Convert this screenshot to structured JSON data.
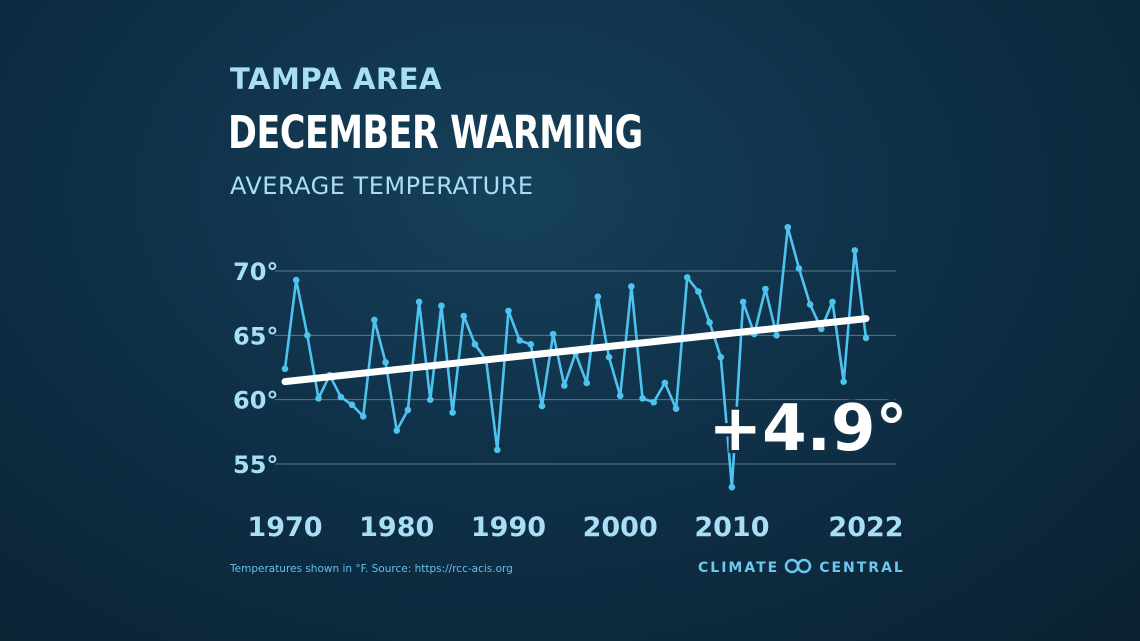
{
  "region": "TAMPA AREA",
  "title": "DECEMBER WARMING",
  "subtitle": "AVERAGE TEMPERATURE",
  "change_label": "+4.9°",
  "source_note": "Temperatures shown in °F. Source: https://rcc-acis.org",
  "brand": {
    "left": "CLIMATE",
    "right": "CENTRAL",
    "logo_icon": "linked-circles-icon"
  },
  "colors": {
    "series": "#4fc3ef",
    "trend": "#ffffff",
    "label": "#a8def6",
    "grid": "#6f8fa3"
  },
  "chart_data": {
    "type": "line",
    "title": "DECEMBER WARMING",
    "subtitle": "AVERAGE TEMPERATURE",
    "xlim": [
      1970,
      2022
    ],
    "ylim": [
      52,
      74
    ],
    "yticks": [
      55,
      60,
      65,
      70
    ],
    "ytick_labels": [
      "55°",
      "60°",
      "65°",
      "70°"
    ],
    "xticks": [
      1970,
      1980,
      1990,
      2000,
      2010,
      2022
    ],
    "xtick_labels": [
      "1970",
      "1980",
      "1990",
      "2000",
      "2010",
      "2022"
    ],
    "grid": "horizontal",
    "series": [
      {
        "x": [
          1970,
          1971,
          1972,
          1973,
          1974,
          1975,
          1976,
          1977,
          1978,
          1979,
          1980,
          1981,
          1982,
          1983,
          1984,
          1985,
          1986,
          1987,
          1988,
          1989,
          1990,
          1991,
          1992,
          1993,
          1994,
          1995,
          1996,
          1997,
          1998,
          1999,
          2000,
          2001,
          2002,
          2003,
          2004,
          2005,
          2006,
          2007,
          2008,
          2009,
          2010,
          2011,
          2012,
          2013,
          2014,
          2015,
          2016,
          2017,
          2018,
          2019,
          2020,
          2021,
          2022
        ],
        "values": [
          62.4,
          69.3,
          65.0,
          60.1,
          61.9,
          60.2,
          59.6,
          58.7,
          66.2,
          62.9,
          57.6,
          59.2,
          67.6,
          60.0,
          67.3,
          59.0,
          66.5,
          64.3,
          63.1,
          56.1,
          66.9,
          64.6,
          64.3,
          59.5,
          65.1,
          61.1,
          63.6,
          61.3,
          68.0,
          63.3,
          60.3,
          68.8,
          60.1,
          59.8,
          61.3,
          59.3,
          69.5,
          68.4,
          66.0,
          63.3,
          53.2,
          67.6,
          65.1,
          68.6,
          65.0,
          73.4,
          70.2,
          67.4,
          65.5,
          67.6,
          61.4,
          71.6,
          64.8
        ]
      },
      {
        "kind": "trend",
        "x": [
          1970,
          2022
        ],
        "values": [
          61.4,
          66.3
        ]
      }
    ],
    "annotations": [
      "+4.9°"
    ]
  }
}
